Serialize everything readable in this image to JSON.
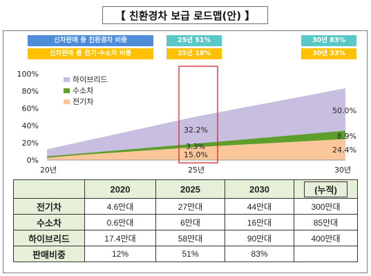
{
  "title": "【 친환경차 보급 로드맵(안) 】",
  "badges": {
    "row1_label": "신차판매 중 친환경차 비중",
    "row1_2025": "25년 51%",
    "row1_2030": "30년 83%",
    "row2_label": "신차판매 중 전기·수소차 비중",
    "row2_2025": "25년 18%",
    "row2_2030": "30년 33%"
  },
  "colors": {
    "hybrid": "#c8bfe0",
    "hydrogen": "#5e9e2b",
    "electric": "#fbc79a",
    "highlight": "#d6262a",
    "table_header": "#e6f0d8"
  },
  "chart_data": {
    "type": "area",
    "stacked": true,
    "x": [
      "20년",
      "25년",
      "30년"
    ],
    "y_ticks": [
      "0%",
      "20%",
      "40%",
      "60%",
      "80%",
      "100%"
    ],
    "ylim": [
      0,
      100
    ],
    "legend": [
      "하이브리드",
      "수소차",
      "전기차"
    ],
    "legend_position": "top-left",
    "series": [
      {
        "name": "전기차",
        "values": [
          3.4,
          15.0,
          24.4
        ]
      },
      {
        "name": "수소차",
        "values": [
          0.1,
          3.3,
          8.9
        ]
      },
      {
        "name": "하이브리드",
        "values": [
          9.0,
          32.2,
          50.0
        ]
      }
    ],
    "labels": {
      "hybrid_2025": "32.2%",
      "hydrogen_2025": "3.3%",
      "electric_2025": "15.0%",
      "hybrid_2030": "50.0%",
      "hydrogen_2030": "8.9%",
      "electric_2030": "24.4%"
    }
  },
  "table": {
    "headers": [
      "",
      "2020",
      "2025",
      "2030",
      "(누적)"
    ],
    "rows": [
      {
        "label": "전기차",
        "cells": [
          "4.6만대",
          "27만대",
          "44만대",
          "300만대"
        ]
      },
      {
        "label": "수소차",
        "cells": [
          "0.6만대",
          "6만대",
          "16만대",
          "85만대"
        ]
      },
      {
        "label": "하이브리드",
        "cells": [
          "17.4만대",
          "58만대",
          "90만대",
          "400만대"
        ]
      },
      {
        "label": "판매비중",
        "cells": [
          "12%",
          "51%",
          "83%",
          ""
        ]
      }
    ]
  }
}
